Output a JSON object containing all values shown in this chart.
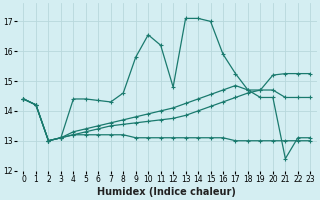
{
  "xlabel": "Humidex (Indice chaleur)",
  "xlim": [
    -0.5,
    23.5
  ],
  "ylim": [
    12,
    17.6
  ],
  "yticks": [
    12,
    13,
    14,
    15,
    16,
    17
  ],
  "xticks": [
    0,
    1,
    2,
    3,
    4,
    5,
    6,
    7,
    8,
    9,
    10,
    11,
    12,
    13,
    14,
    15,
    16,
    17,
    18,
    19,
    20,
    21,
    22,
    23
  ],
  "bg_color": "#d4eef2",
  "grid_color": "#b8d8dc",
  "line_color": "#1a7a6e",
  "line1_x": [
    0,
    1,
    2,
    3,
    4,
    5,
    6,
    7,
    8,
    9,
    10,
    11,
    12,
    13,
    14,
    15,
    16,
    17,
    18,
    19,
    20,
    21,
    22,
    23
  ],
  "line1_y": [
    14.4,
    14.2,
    13.0,
    13.1,
    14.4,
    14.4,
    14.35,
    14.3,
    14.6,
    15.8,
    16.55,
    16.2,
    14.8,
    17.1,
    17.1,
    17.0,
    15.9,
    15.25,
    14.7,
    14.45,
    14.45,
    12.4,
    13.1,
    13.1
  ],
  "line2_x": [
    0,
    1,
    2,
    3,
    4,
    5,
    6,
    7,
    8,
    9,
    10,
    11,
    12,
    13,
    14,
    15,
    16,
    17,
    18,
    19,
    20,
    21,
    22,
    23
  ],
  "line2_y": [
    14.4,
    14.2,
    13.0,
    13.1,
    13.2,
    13.2,
    13.2,
    13.2,
    13.2,
    13.1,
    13.1,
    13.1,
    13.1,
    13.1,
    13.1,
    13.1,
    13.1,
    13.0,
    13.0,
    13.0,
    13.0,
    13.0,
    13.0,
    13.0
  ],
  "line3_x": [
    0,
    1,
    2,
    3,
    4,
    5,
    6,
    7,
    8,
    9,
    10,
    11,
    12,
    13,
    14,
    15,
    16,
    17,
    18,
    19,
    20,
    21,
    22,
    23
  ],
  "line3_y": [
    14.4,
    14.2,
    13.0,
    13.1,
    13.3,
    13.4,
    13.5,
    13.6,
    13.7,
    13.8,
    13.9,
    14.0,
    14.1,
    14.25,
    14.4,
    14.55,
    14.7,
    14.85,
    14.7,
    14.7,
    14.7,
    14.45,
    14.45,
    14.45
  ],
  "line4_x": [
    0,
    1,
    2,
    3,
    4,
    5,
    6,
    7,
    8,
    9,
    10,
    11,
    12,
    13,
    14,
    15,
    16,
    17,
    18,
    19,
    20,
    21,
    22,
    23
  ],
  "line4_y": [
    14.4,
    14.2,
    13.0,
    13.1,
    13.2,
    13.3,
    13.4,
    13.5,
    13.55,
    13.6,
    13.65,
    13.7,
    13.75,
    13.85,
    14.0,
    14.15,
    14.3,
    14.45,
    14.6,
    14.7,
    15.2,
    15.25,
    15.25,
    15.25
  ]
}
